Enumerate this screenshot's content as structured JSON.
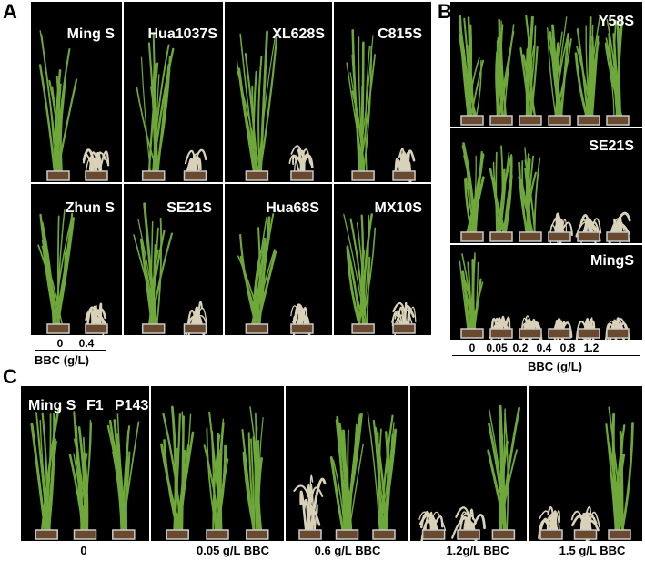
{
  "figure": {
    "panel_labels": {
      "a": "A",
      "b": "B",
      "c": "C"
    }
  },
  "panelA": {
    "varieties": [
      "Ming S",
      "Hua1037S",
      "XL628S",
      "C815S",
      "Zhun S",
      "SE21S",
      "Hua68S",
      "MX10S"
    ],
    "doses": [
      "0",
      "0.4"
    ],
    "axis_label": "BBC (g/L)"
  },
  "panelB": {
    "varieties": [
      "Y58S",
      "SE21S",
      "MingS"
    ],
    "doses": [
      "0",
      "0.05",
      "0.2",
      "0.4",
      "0.8",
      "1.2"
    ],
    "axis_label": "BBC (g/L)"
  },
  "panelC": {
    "lines": [
      "Ming S",
      "F1",
      "P143"
    ],
    "conditions": [
      "0",
      "0.05 g/L  BBC",
      "0.6  g/L BBC",
      "1.2g/L BBC",
      "1.5 g/L BBC"
    ]
  },
  "colors": {
    "background": "#000000",
    "healthy_leaf": "#6fa83a",
    "bleached_leaf": "#d9d2b8",
    "pot": "#c9c9c9",
    "soil": "#6a4a2e"
  }
}
